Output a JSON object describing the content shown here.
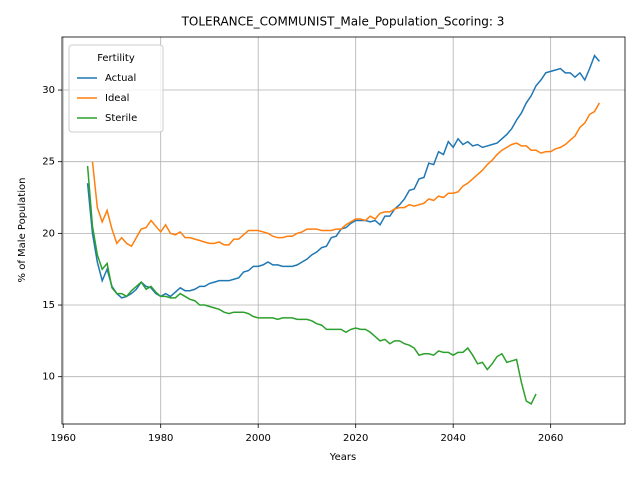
{
  "chart_data": {
    "type": "line",
    "title": "TOLERANCE_COMMUNIST_Male_Population_Scoring: 3",
    "x_label": "Years",
    "y_label": "% of Male Population",
    "legend_title": "Fertility",
    "legend_loc": "upper left",
    "grid": true,
    "x": [
      1965,
      1966,
      1967,
      1968,
      1969,
      1970,
      1971,
      1972,
      1973,
      1974,
      1975,
      1976,
      1977,
      1978,
      1979,
      1980,
      1981,
      1982,
      1983,
      1984,
      1985,
      1986,
      1987,
      1988,
      1989,
      1990,
      1991,
      1992,
      1993,
      1994,
      1995,
      1996,
      1997,
      1998,
      1999,
      2000,
      2001,
      2002,
      2003,
      2004,
      2005,
      2006,
      2007,
      2008,
      2009,
      2010,
      2011,
      2012,
      2013,
      2014,
      2015,
      2016,
      2017,
      2018,
      2019,
      2020,
      2021,
      2022,
      2023,
      2024,
      2025,
      2026,
      2027,
      2028,
      2029,
      2030,
      2031,
      2032,
      2033,
      2034,
      2035,
      2036,
      2037,
      2038,
      2039,
      2040,
      2041,
      2042,
      2043,
      2044,
      2045,
      2046,
      2047,
      2048,
      2049,
      2050,
      2051,
      2052,
      2053,
      2054,
      2055,
      2056,
      2057,
      2058,
      2059,
      2060,
      2061,
      2062,
      2063,
      2064,
      2065,
      2066,
      2067,
      2068,
      2069,
      2070
    ],
    "series": [
      {
        "name": "Actual",
        "color": "#1f77b4",
        "values": [
          23.5,
          20,
          18,
          16.7,
          17.5,
          16.3,
          15.8,
          15.5,
          15.6,
          15.8,
          16.1,
          16.6,
          16.3,
          16.2,
          15.8,
          15.6,
          15.8,
          15.6,
          15.9,
          16.2,
          16.0,
          16.0,
          16.1,
          16.3,
          16.3,
          16.5,
          16.6,
          16.7,
          16.7,
          16.7,
          16.8,
          16.9,
          17.3,
          17.4,
          17.7,
          17.7,
          17.8,
          18.0,
          17.8,
          17.8,
          17.7,
          17.7,
          17.7,
          17.8,
          18.0,
          18.2,
          18.5,
          18.7,
          19.0,
          19.1,
          19.7,
          19.8,
          20.3,
          20.4,
          20.7,
          20.9,
          20.9,
          20.9,
          20.8,
          20.9,
          20.6,
          21.2,
          21.2,
          21.7,
          22.0,
          22.4,
          23.0,
          23.1,
          23.8,
          23.9,
          24.9,
          24.8,
          25.7,
          25.5,
          26.4,
          26.0,
          26.6,
          26.2,
          26.4,
          26.1,
          26.2,
          26.0,
          26.1,
          26.2,
          26.3,
          26.6,
          26.9,
          27.3,
          27.9,
          28.4,
          29.1,
          29.6,
          30.3,
          30.7,
          31.2,
          31.3,
          31.4,
          31.5,
          31.2,
          31.2,
          30.9,
          31.2,
          30.7,
          31.5,
          32.4,
          32.0
        ]
      },
      {
        "name": "Ideal",
        "color": "#ff7f0e",
        "values": [
          null,
          25.0,
          21.8,
          20.8,
          21.6,
          20.3,
          19.3,
          19.7,
          19.3,
          19.1,
          19.7,
          20.3,
          20.4,
          20.9,
          20.5,
          20.1,
          20.6,
          20.0,
          19.9,
          20.1,
          19.7,
          19.7,
          19.6,
          19.5,
          19.4,
          19.3,
          19.3,
          19.4,
          19.2,
          19.2,
          19.6,
          19.6,
          19.9,
          20.2,
          20.2,
          20.2,
          20.1,
          20.0,
          19.8,
          19.7,
          19.7,
          19.8,
          19.8,
          20.0,
          20.1,
          20.3,
          20.3,
          20.3,
          20.2,
          20.2,
          20.2,
          20.3,
          20.3,
          20.6,
          20.8,
          21.0,
          21.0,
          20.9,
          21.2,
          21.0,
          21.4,
          21.5,
          21.5,
          21.7,
          21.8,
          21.8,
          22.0,
          21.9,
          22.0,
          22.1,
          22.4,
          22.3,
          22.6,
          22.5,
          22.8,
          22.8,
          22.9,
          23.3,
          23.5,
          23.8,
          24.1,
          24.4,
          24.8,
          25.1,
          25.5,
          25.8,
          26.0,
          26.2,
          26.3,
          26.1,
          26.1,
          25.8,
          25.8,
          25.6,
          25.7,
          25.7,
          25.9,
          26.0,
          26.2,
          26.5,
          26.8,
          27.4,
          27.7,
          28.3,
          28.5,
          29.1
        ]
      },
      {
        "name": "Sterile",
        "color": "#2ca02c",
        "values": [
          24.7,
          20.5,
          18.5,
          17.5,
          17.9,
          16.2,
          15.8,
          15.8,
          15.6,
          16.0,
          16.3,
          16.6,
          16.1,
          16.3,
          15.9,
          15.6,
          15.6,
          15.5,
          15.5,
          15.8,
          15.6,
          15.4,
          15.3,
          15.0,
          15.0,
          14.9,
          14.8,
          14.7,
          14.5,
          14.4,
          14.5,
          14.5,
          14.5,
          14.4,
          14.2,
          14.1,
          14.1,
          14.1,
          14.1,
          14.0,
          14.1,
          14.1,
          14.1,
          14.0,
          14.0,
          14.0,
          13.9,
          13.7,
          13.6,
          13.3,
          13.3,
          13.3,
          13.3,
          13.1,
          13.3,
          13.4,
          13.3,
          13.3,
          13.1,
          12.8,
          12.5,
          12.6,
          12.3,
          12.5,
          12.5,
          12.3,
          12.2,
          12.0,
          11.5,
          11.6,
          11.6,
          11.5,
          11.8,
          11.7,
          11.7,
          11.5,
          11.7,
          11.7,
          12.0,
          11.5,
          10.9,
          11.0,
          10.5,
          10.9,
          11.4,
          11.6,
          11.0,
          11.1,
          11.2,
          9.6,
          8.3,
          8.1,
          8.8,
          null,
          null,
          null,
          null,
          null,
          null,
          null,
          null,
          null,
          null,
          null,
          null,
          null
        ]
      }
    ],
    "xlim": [
      1959.75,
      2075.25
    ],
    "xticks": [
      1960,
      1980,
      2000,
      2020,
      2040,
      2060
    ],
    "ylim": [
      6.7,
      33.7
    ],
    "yticks": [
      10,
      15,
      20,
      25,
      30
    ]
  }
}
